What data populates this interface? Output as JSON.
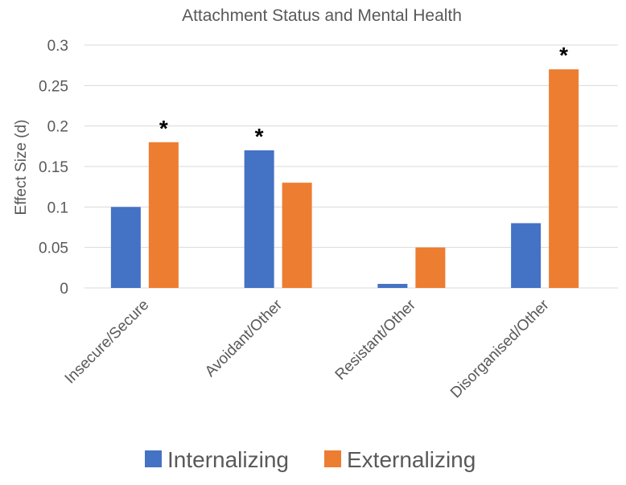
{
  "chart_data": {
    "type": "bar",
    "title": "Attachment Status and Mental Health",
    "xlabel": "",
    "ylabel": "Effect Size (d)",
    "ylim": [
      0,
      0.3
    ],
    "yticks": [
      "0",
      "0.05",
      "0.1",
      "0.15",
      "0.2",
      "0.25",
      "0.3"
    ],
    "grid": true,
    "legend": "bottom",
    "categories": [
      "Insecure/Secure",
      "Avoidant/Other",
      "Resistant/Other",
      "Disorganised/Other"
    ],
    "series": [
      {
        "name": "Internalizing",
        "color": "#4472C4",
        "values": [
          0.1,
          0.17,
          0.005,
          0.08
        ],
        "significant": [
          false,
          true,
          false,
          false
        ]
      },
      {
        "name": "Externalizing",
        "color": "#ED7D31",
        "values": [
          0.18,
          0.13,
          0.05,
          0.27
        ],
        "significant": [
          true,
          false,
          false,
          true
        ]
      }
    ],
    "significance_marker": "*"
  }
}
